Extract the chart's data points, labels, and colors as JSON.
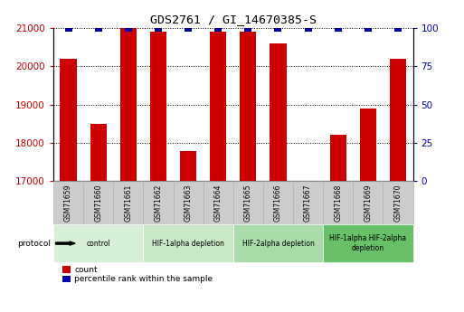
{
  "title": "GDS2761 / GI_14670385-S",
  "samples": [
    "GSM71659",
    "GSM71660",
    "GSM71661",
    "GSM71662",
    "GSM71663",
    "GSM71664",
    "GSM71665",
    "GSM71666",
    "GSM71667",
    "GSM71668",
    "GSM71669",
    "GSM71670"
  ],
  "counts": [
    20200,
    18500,
    21000,
    20900,
    17780,
    20900,
    20900,
    20600,
    17000,
    18200,
    18900,
    20200
  ],
  "percentile_ranks": [
    100,
    100,
    100,
    100,
    100,
    100,
    100,
    100,
    100,
    100,
    100,
    100
  ],
  "ylim_left": [
    17000,
    21000
  ],
  "ylim_right": [
    0,
    100
  ],
  "yticks_left": [
    17000,
    18000,
    19000,
    20000,
    21000
  ],
  "yticks_right": [
    0,
    25,
    50,
    75,
    100
  ],
  "bar_color": "#cc0000",
  "dot_color": "#0000aa",
  "dot_size": 28,
  "grid_color": "#000000",
  "bg_color": "#ffffff",
  "protocol_groups": [
    {
      "label": "control",
      "start": 0,
      "end": 2,
      "color": "#d8f0d8"
    },
    {
      "label": "HIF-1alpha depletion",
      "start": 3,
      "end": 5,
      "color": "#c8e8c8"
    },
    {
      "label": "HIF-2alpha depletion",
      "start": 6,
      "end": 8,
      "color": "#a8dca8"
    },
    {
      "label": "HIF-1alpha HIF-2alpha\ndepletion",
      "start": 9,
      "end": 11,
      "color": "#68c068"
    }
  ],
  "tick_label_color_left": "#cc0000",
  "tick_label_color_right": "#0000aa",
  "bar_width": 0.55,
  "sample_box_color": "#cccccc",
  "sample_box_edge": "#aaaaaa"
}
